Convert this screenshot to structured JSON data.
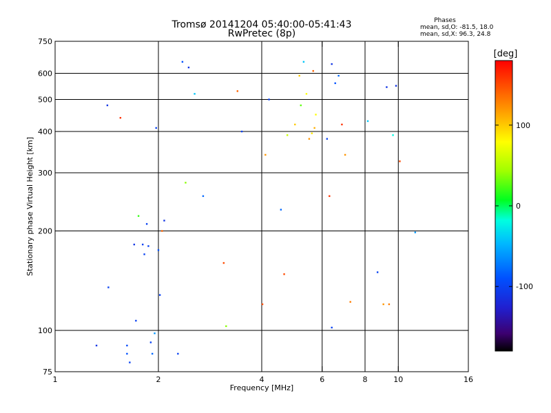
{
  "chart_data": {
    "type": "scatter",
    "title": "Tromsø 20141204 05:40:00-05:41:43",
    "subtitle": "RwPretec (8p)",
    "xlabel": "Frequency [MHz]",
    "ylabel": "Stationary phase Virtual Height [km]",
    "xscale": "log2",
    "yscale": "log",
    "xlim": [
      1,
      16
    ],
    "ylim": [
      75,
      750
    ],
    "xticks": [
      1,
      2,
      4,
      6,
      8,
      10,
      16
    ],
    "xtick_labels": [
      "1",
      "2",
      "4",
      "6",
      "8",
      "10",
      "16"
    ],
    "xgrid": [
      2,
      4,
      6,
      8,
      10
    ],
    "yticks": [
      75,
      100,
      200,
      300,
      400,
      500,
      600,
      750
    ],
    "ytick_labels": [
      "75",
      "100",
      "200",
      "300",
      "400",
      "500",
      "600",
      "750"
    ],
    "ygrid": [
      100,
      200,
      300,
      400,
      500,
      600
    ],
    "stats": {
      "title": "Phases",
      "line_o": "mean, sd,O: -81.5, 18.0",
      "line_x": "mean, sd,X:  96.3, 24.8"
    },
    "colorbar": {
      "label": "[deg]",
      "range": [
        -180,
        180
      ],
      "ticks": [
        100,
        0,
        -100
      ],
      "tick_labels": [
        "100",
        "0",
        "-100"
      ]
    },
    "series": [
      {
        "name": "echoes",
        "points": [
          [
            1.32,
            90,
            -110
          ],
          [
            1.42,
            480,
            -110
          ],
          [
            1.43,
            135,
            -100
          ],
          [
            1.55,
            440,
            160
          ],
          [
            1.62,
            90,
            -95
          ],
          [
            1.62,
            85,
            -90
          ],
          [
            1.65,
            80,
            -100
          ],
          [
            1.7,
            182,
            -110
          ],
          [
            1.72,
            107,
            -100
          ],
          [
            1.75,
            222,
            20
          ],
          [
            1.8,
            182,
            -100
          ],
          [
            1.82,
            170,
            -100
          ],
          [
            1.85,
            210,
            -100
          ],
          [
            1.87,
            180,
            -100
          ],
          [
            1.9,
            92,
            -100
          ],
          [
            1.92,
            85,
            -80
          ],
          [
            1.95,
            98,
            -60
          ],
          [
            1.97,
            410,
            -100
          ],
          [
            2.0,
            175,
            -90
          ],
          [
            2.02,
            128,
            -100
          ],
          [
            2.05,
            200,
            140
          ],
          [
            2.08,
            215,
            -110
          ],
          [
            2.28,
            85,
            -100
          ],
          [
            2.35,
            650,
            -90
          ],
          [
            2.4,
            280,
            40
          ],
          [
            2.45,
            625,
            -110
          ],
          [
            2.55,
            520,
            -40
          ],
          [
            2.7,
            255,
            -80
          ],
          [
            3.1,
            160,
            150
          ],
          [
            3.15,
            103,
            40
          ],
          [
            3.4,
            530,
            140
          ],
          [
            3.5,
            400,
            -100
          ],
          [
            4.02,
            120,
            150
          ],
          [
            4.1,
            340,
            120
          ],
          [
            4.2,
            500,
            -100
          ],
          [
            4.55,
            232,
            -80
          ],
          [
            4.65,
            148,
            150
          ],
          [
            4.75,
            390,
            60
          ],
          [
            5.0,
            420,
            100
          ],
          [
            5.15,
            590,
            100
          ],
          [
            5.2,
            480,
            30
          ],
          [
            5.3,
            650,
            -40
          ],
          [
            5.4,
            520,
            80
          ],
          [
            5.5,
            380,
            120
          ],
          [
            5.6,
            395,
            90
          ],
          [
            5.65,
            610,
            140
          ],
          [
            5.7,
            410,
            110
          ],
          [
            5.75,
            450,
            80
          ],
          [
            6.2,
            380,
            -100
          ],
          [
            6.3,
            255,
            160
          ],
          [
            6.4,
            640,
            -110
          ],
          [
            6.4,
            102,
            -100
          ],
          [
            6.55,
            560,
            -90
          ],
          [
            6.7,
            590,
            -80
          ],
          [
            6.85,
            420,
            160
          ],
          [
            7.0,
            340,
            120
          ],
          [
            7.25,
            122,
            130
          ],
          [
            8.15,
            430,
            -40
          ],
          [
            8.7,
            150,
            -100
          ],
          [
            9.05,
            120,
            120
          ],
          [
            9.25,
            545,
            -110
          ],
          [
            9.4,
            120,
            130
          ],
          [
            9.65,
            390,
            -20
          ],
          [
            9.85,
            550,
            -110
          ],
          [
            10.1,
            325,
            150
          ],
          [
            11.2,
            198,
            -60
          ]
        ]
      }
    ]
  }
}
